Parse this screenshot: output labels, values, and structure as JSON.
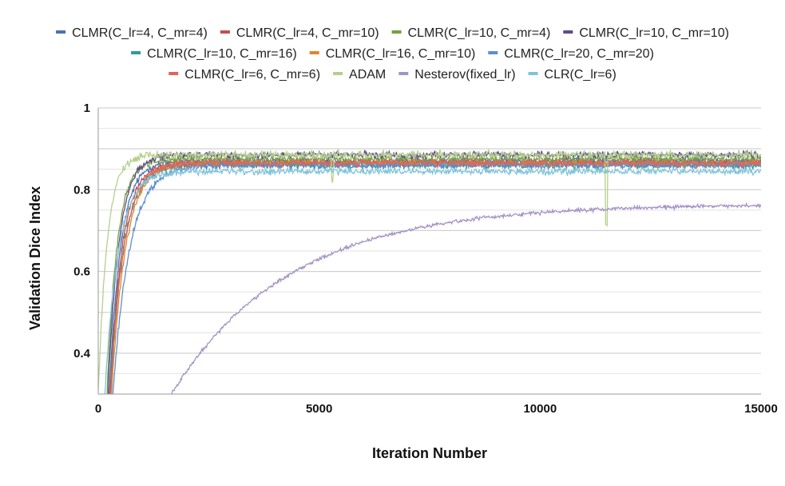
{
  "chart_data": {
    "type": "line",
    "title": "",
    "xlabel": "Iteration Number",
    "ylabel": "Validation Dice Index",
    "xlim": [
      0,
      15000
    ],
    "ylim": [
      0.3,
      1.0
    ],
    "x_ticks": [
      "0",
      "5000",
      "10000",
      "15000"
    ],
    "y_ticks": [
      "0.4",
      "0.6",
      "0.8",
      "1"
    ],
    "grid": true,
    "legend_position": "top",
    "series": [
      {
        "name": "CLMR(C_lr=4,  C_mr=4)",
        "color": "#4a72b0",
        "plateau": 0.87,
        "rise_start": 250,
        "tau": 260,
        "noise": 0.007
      },
      {
        "name": "CLMR(C_lr=4,  C_mr=10)",
        "color": "#c0504d",
        "plateau": 0.865,
        "rise_start": 260,
        "tau": 280,
        "noise": 0.008
      },
      {
        "name": "CLMR(C_lr=10,  C_mr=4)",
        "color": "#77a040",
        "plateau": 0.875,
        "rise_start": 200,
        "tau": 230,
        "noise": 0.007
      },
      {
        "name": "CLMR(C_lr=10,  C_mr=10)",
        "color": "#5f4a8b",
        "plateau": 0.885,
        "rise_start": 220,
        "tau": 250,
        "noise": 0.007
      },
      {
        "name": "CLMR(C_lr=10,  C_mr=16)",
        "color": "#2e9c9a",
        "plateau": 0.86,
        "rise_start": 270,
        "tau": 300,
        "noise": 0.007
      },
      {
        "name": "CLMR(C_lr=16,  C_mr=10)",
        "color": "#e2842c",
        "plateau": 0.865,
        "rise_start": 300,
        "tau": 320,
        "noise": 0.007
      },
      {
        "name": "CLMR(C_lr=20,  C_mr=20)",
        "color": "#5b8fd1",
        "plateau": 0.86,
        "rise_start": 330,
        "tau": 380,
        "noise": 0.007
      },
      {
        "name": "CLMR(C_lr=6,  C_mr=6)",
        "color": "#d9675f",
        "plateau": 0.865,
        "rise_start": 280,
        "tau": 300,
        "noise": 0.008
      },
      {
        "name": "ADAM",
        "color": "#b4d08c",
        "plateau": 0.885,
        "rise_start": 0,
        "tau": 200,
        "noise": 0.008
      },
      {
        "name": "Nesterov(fixed_lr)",
        "color": "#a493c4",
        "plateau": 0.765,
        "rise_start": 1650,
        "tau": 2700,
        "noise": 0.004
      },
      {
        "name": "CLR(C_lr=6)",
        "color": "#7fc3d9",
        "plateau": 0.845,
        "rise_start": 150,
        "tau": 300,
        "noise": 0.007
      }
    ]
  }
}
